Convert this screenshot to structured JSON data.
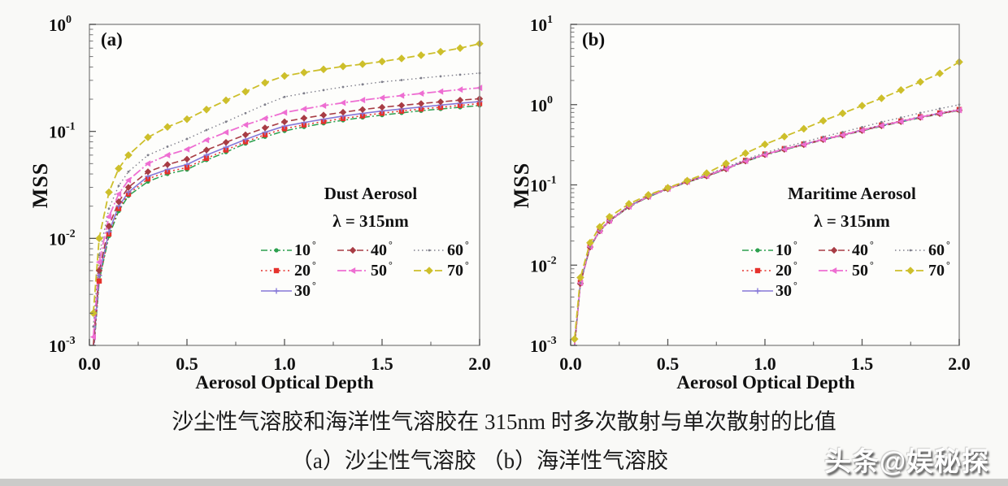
{
  "caption": {
    "line1": "沙尘性气溶胶和海洋性气溶胶在 315nm 时多次散射与单次散射的比值",
    "line2": "（a）沙尘性气溶胶  （b）海洋性气溶胶"
  },
  "watermark": {
    "text": "头条@娱秘探"
  },
  "colors": {
    "deg10": "#2ca04e",
    "deg20": "#e5322c",
    "deg30": "#8678d8",
    "deg40": "#a83c44",
    "deg50": "#ee6ed2",
    "deg60": "#80808c",
    "deg70": "#cdbf2b",
    "axis": "#8b8b8b",
    "text": "#111111"
  },
  "chart_data": [
    {
      "type": "line",
      "panel": "(a)",
      "title": "Dust Aerosol",
      "wavelength_label": "λ = 315nm",
      "xlabel": "Aerosol Optical Depth",
      "ylabel": "MSS",
      "xlim": [
        0,
        2
      ],
      "xticks": [
        0.0,
        0.5,
        1.0,
        1.5,
        2.0
      ],
      "xtick_labels": [
        "0.0",
        "0.5",
        "1.0",
        "1.5",
        "2.0"
      ],
      "xticks_minor": [
        0.25,
        0.75,
        1.25,
        1.75
      ],
      "yscale": "log",
      "ylim_exp": [
        -3,
        0
      ],
      "yticks_exp": [
        0,
        -1,
        -2,
        -3
      ],
      "grid": false,
      "legend_position": "inside-right",
      "legend_order": [
        0,
        3,
        5,
        1,
        4,
        6,
        2
      ],
      "x": [
        0.02,
        0.05,
        0.1,
        0.15,
        0.2,
        0.3,
        0.4,
        0.5,
        0.6,
        0.7,
        0.8,
        0.9,
        1.0,
        1.1,
        1.2,
        1.3,
        1.4,
        1.5,
        1.6,
        1.7,
        1.8,
        1.9,
        2.0
      ],
      "series": [
        {
          "label_num": "10",
          "label_sup": "°",
          "color": "#2ca04e",
          "dash": "8 3 2 3",
          "marker": "circle",
          "marker_size": 2.6,
          "width": 1.5,
          "values": [
            0.0008,
            0.004,
            0.0105,
            0.018,
            0.025,
            0.034,
            0.04,
            0.044,
            0.054,
            0.064,
            0.077,
            0.089,
            0.101,
            0.11,
            0.119,
            0.127,
            0.135,
            0.142,
            0.149,
            0.156,
            0.162,
            0.168,
            0.175
          ]
        },
        {
          "label_num": "20",
          "label_sup": "°",
          "color": "#e5322c",
          "dash": "2 3.5",
          "marker": "square",
          "marker_size": 3.2,
          "width": 1.5,
          "values": [
            0.0008,
            0.004,
            0.011,
            0.019,
            0.026,
            0.036,
            0.042,
            0.046,
            0.056,
            0.067,
            0.08,
            0.093,
            0.106,
            0.115,
            0.124,
            0.132,
            0.14,
            0.148,
            0.155,
            0.162,
            0.168,
            0.175,
            0.182
          ]
        },
        {
          "label_num": "30",
          "label_sup": "°",
          "color": "#8678d8",
          "dash": "",
          "marker": "plus",
          "marker_size": 3.5,
          "width": 1.6,
          "values": [
            0.0009,
            0.0045,
            0.0115,
            0.02,
            0.027,
            0.038,
            0.044,
            0.049,
            0.06,
            0.071,
            0.084,
            0.098,
            0.112,
            0.121,
            0.13,
            0.139,
            0.147,
            0.155,
            0.162,
            0.169,
            0.176,
            0.183,
            0.19
          ]
        },
        {
          "label_num": "40",
          "label_sup": "°",
          "color": "#a83c44",
          "dash": "8 4",
          "marker": "diamond",
          "marker_size": 4.2,
          "width": 1.6,
          "values": [
            0.001,
            0.005,
            0.013,
            0.022,
            0.03,
            0.042,
            0.049,
            0.055,
            0.067,
            0.079,
            0.093,
            0.108,
            0.123,
            0.133,
            0.142,
            0.151,
            0.16,
            0.168,
            0.175,
            0.182,
            0.189,
            0.196,
            0.202
          ]
        },
        {
          "label_num": "50",
          "label_sup": "°",
          "color": "#ee6ed2",
          "dash": "11 3 2 3",
          "marker": "tri-left",
          "marker_size": 4,
          "width": 1.8,
          "values": [
            0.0012,
            0.006,
            0.016,
            0.026,
            0.035,
            0.05,
            0.06,
            0.068,
            0.083,
            0.098,
            0.115,
            0.132,
            0.15,
            0.162,
            0.174,
            0.185,
            0.196,
            0.206,
            0.216,
            0.226,
            0.236,
            0.246,
            0.255
          ]
        },
        {
          "label_num": "60",
          "label_sup": "°",
          "color": "#80808c",
          "dash": "1.5 3.5",
          "marker": "dot",
          "marker_size": 1.4,
          "width": 1.4,
          "values": [
            0.0015,
            0.007,
            0.019,
            0.031,
            0.042,
            0.06,
            0.072,
            0.085,
            0.103,
            0.123,
            0.148,
            0.178,
            0.21,
            0.227,
            0.243,
            0.26,
            0.275,
            0.29,
            0.302,
            0.315,
            0.327,
            0.339,
            0.35
          ]
        },
        {
          "label_num": "70",
          "label_sup": "°",
          "color": "#cdbf2b",
          "dash": "9 4",
          "marker": "diamond",
          "marker_size": 4.8,
          "width": 1.8,
          "values": [
            0.002,
            0.01,
            0.027,
            0.045,
            0.06,
            0.088,
            0.11,
            0.13,
            0.16,
            0.195,
            0.235,
            0.285,
            0.33,
            0.355,
            0.38,
            0.405,
            0.425,
            0.45,
            0.48,
            0.515,
            0.555,
            0.6,
            0.66
          ]
        }
      ]
    },
    {
      "type": "line",
      "panel": "(b)",
      "title": "Maritime Aerosol",
      "wavelength_label": "λ = 315nm",
      "xlabel": "Aerosol Optical Depth",
      "ylabel": "MSS",
      "xlim": [
        0,
        2
      ],
      "xticks": [
        0.0,
        0.5,
        1.0,
        1.5,
        2.0
      ],
      "xtick_labels": [
        "0.0",
        "0.5",
        "1.0",
        "1.5",
        "2.0"
      ],
      "xticks_minor": [
        0.25,
        0.75,
        1.25,
        1.75
      ],
      "yscale": "log",
      "ylim_exp": [
        -3,
        1
      ],
      "yticks_exp": [
        1,
        0,
        -1,
        -2,
        -3
      ],
      "grid": false,
      "legend_position": "inside-right",
      "legend_order": [
        0,
        3,
        5,
        1,
        4,
        6,
        2
      ],
      "x": [
        0.02,
        0.05,
        0.1,
        0.15,
        0.2,
        0.3,
        0.4,
        0.5,
        0.6,
        0.7,
        0.8,
        0.9,
        1.0,
        1.1,
        1.2,
        1.3,
        1.4,
        1.5,
        1.6,
        1.7,
        1.8,
        1.9,
        2.0
      ],
      "series": [
        {
          "label_num": "10",
          "label_sup": "°",
          "color": "#2ca04e",
          "dash": "8 3 2 3",
          "marker": "circle",
          "marker_size": 2.6,
          "width": 1.5,
          "values": [
            0.001,
            0.0059,
            0.0167,
            0.0265,
            0.0353,
            0.0529,
            0.0706,
            0.0882,
            0.108,
            0.127,
            0.157,
            0.196,
            0.235,
            0.274,
            0.314,
            0.363,
            0.412,
            0.47,
            0.539,
            0.608,
            0.686,
            0.764,
            0.843
          ]
        },
        {
          "label_num": "20",
          "label_sup": "°",
          "color": "#e5322c",
          "dash": "2 3.5",
          "marker": "square",
          "marker_size": 3.2,
          "width": 1.5,
          "values": [
            0.001,
            0.0061,
            0.0172,
            0.0273,
            0.0364,
            0.0545,
            0.0727,
            0.0909,
            0.111,
            0.131,
            0.162,
            0.202,
            0.242,
            0.283,
            0.323,
            0.374,
            0.424,
            0.485,
            0.556,
            0.626,
            0.707,
            0.788,
            0.869
          ]
        },
        {
          "label_num": "30",
          "label_sup": "°",
          "color": "#8678d8",
          "dash": "",
          "marker": "plus",
          "marker_size": 3.5,
          "width": 1.6,
          "values": [
            0.001,
            0.006,
            0.017,
            0.027,
            0.036,
            0.054,
            0.072,
            0.09,
            0.11,
            0.13,
            0.16,
            0.2,
            0.24,
            0.28,
            0.32,
            0.37,
            0.42,
            0.48,
            0.55,
            0.62,
            0.7,
            0.78,
            0.86
          ]
        },
        {
          "label_num": "40",
          "label_sup": "°",
          "color": "#a83c44",
          "dash": "8 4",
          "marker": "diamond",
          "marker_size": 4.2,
          "width": 1.6,
          "values": [
            0.001,
            0.0059,
            0.0168,
            0.0267,
            0.0356,
            0.0535,
            0.0713,
            0.0891,
            0.109,
            0.129,
            0.158,
            0.198,
            0.238,
            0.277,
            0.317,
            0.366,
            0.416,
            0.475,
            0.545,
            0.614,
            0.693,
            0.772,
            0.851
          ]
        },
        {
          "label_num": "50",
          "label_sup": "°",
          "color": "#ee6ed2",
          "dash": "11 3 2 3",
          "marker": "tri-left",
          "marker_size": 4,
          "width": 1.8,
          "values": [
            0.001,
            0.006,
            0.017,
            0.0268,
            0.0358,
            0.0538,
            0.0716,
            0.0895,
            0.1095,
            0.1295,
            0.159,
            0.199,
            0.239,
            0.279,
            0.319,
            0.368,
            0.418,
            0.478,
            0.548,
            0.617,
            0.697,
            0.776,
            0.855
          ]
        },
        {
          "label_num": "60",
          "label_sup": "°",
          "color": "#80808c",
          "dash": "1.5 3.5",
          "marker": "dot",
          "marker_size": 1.4,
          "width": 1.4,
          "values": [
            0.001,
            0.006,
            0.017,
            0.027,
            0.036,
            0.055,
            0.073,
            0.092,
            0.113,
            0.134,
            0.166,
            0.208,
            0.252,
            0.296,
            0.342,
            0.398,
            0.455,
            0.525,
            0.607,
            0.69,
            0.79,
            0.89,
            1.0
          ]
        },
        {
          "label_num": "70",
          "label_sup": "°",
          "color": "#cdbf2b",
          "dash": "9 4",
          "marker": "diamond",
          "marker_size": 4.8,
          "width": 1.8,
          "values": [
            0.0012,
            0.007,
            0.019,
            0.03,
            0.04,
            0.058,
            0.075,
            0.092,
            0.113,
            0.14,
            0.185,
            0.248,
            0.32,
            0.4,
            0.5,
            0.63,
            0.78,
            0.97,
            1.2,
            1.52,
            1.92,
            2.45,
            3.4
          ]
        }
      ]
    }
  ]
}
